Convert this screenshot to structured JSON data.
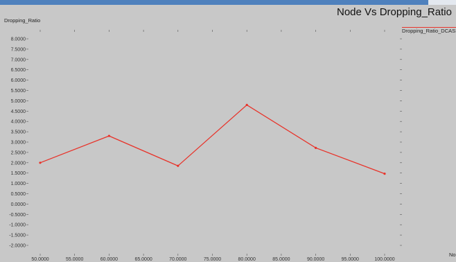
{
  "window": {
    "title": "Node Vs Dropping_Ratio"
  },
  "chart_data": {
    "type": "line",
    "title": "Node Vs Dropping_Ratio",
    "xlabel": "Nod",
    "ylabel": "Dropping_Ratio",
    "legend": "Dropping_Ratio_DCASSS",
    "legend_position": "top-right",
    "grid": false,
    "xlim": [
      50,
      100
    ],
    "ylim": [
      -2,
      8
    ],
    "x_ticks": [
      "50.0000",
      "55.0000",
      "60.0000",
      "65.0000",
      "70.0000",
      "75.0000",
      "80.0000",
      "85.0000",
      "90.0000",
      "95.0000",
      "100.0000"
    ],
    "y_ticks": [
      "8.0000",
      "7.5000",
      "7.0000",
      "6.5000",
      "6.0000",
      "5.5000",
      "5.0000",
      "4.5000",
      "4.0000",
      "3.5000",
      "3.0000",
      "2.5000",
      "2.0000",
      "1.5000",
      "1.0000",
      "0.5000",
      "0.0000",
      "-0.5000",
      "-1.0000",
      "-1.5000",
      "-2.0000"
    ],
    "series": [
      {
        "name": "Dropping_Ratio_DCASSS",
        "color": "#e8332a",
        "x": [
          50,
          60,
          70,
          80,
          90,
          100
        ],
        "y": [
          2.0,
          3.3,
          1.85,
          4.8,
          2.72,
          1.47
        ]
      }
    ]
  }
}
